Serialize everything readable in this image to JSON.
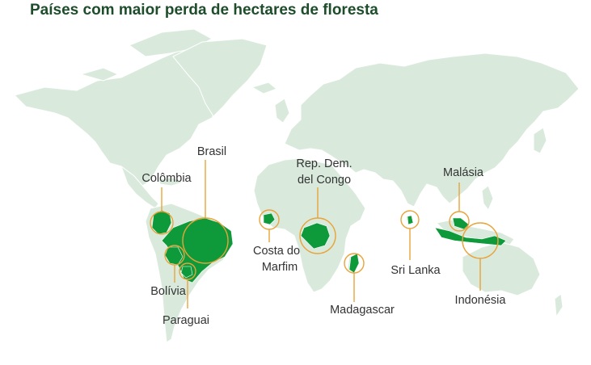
{
  "title": "Países com maior perda de hectares de floresta",
  "accent_color": "#e8a43a",
  "land_color": "#d9eadd",
  "highlight_color": "#0e9a3a",
  "countries": [
    {
      "id": "brasil",
      "label": "Brasil"
    },
    {
      "id": "colombia",
      "label": "Colômbia"
    },
    {
      "id": "bolivia",
      "label": "Bolívia"
    },
    {
      "id": "paraguai",
      "label": "Paraguai"
    },
    {
      "id": "costa-do-marfim",
      "label_lines": [
        "Costa do",
        "Marfim"
      ]
    },
    {
      "id": "rep-dem-congo",
      "label_lines": [
        "Rep. Dem.",
        "del Congo"
      ]
    },
    {
      "id": "madagascar",
      "label": "Madagascar"
    },
    {
      "id": "sri-lanka",
      "label": "Sri Lanka"
    },
    {
      "id": "malasia",
      "label": "Malásia"
    },
    {
      "id": "indonesia",
      "label": "Indonésia"
    }
  ]
}
